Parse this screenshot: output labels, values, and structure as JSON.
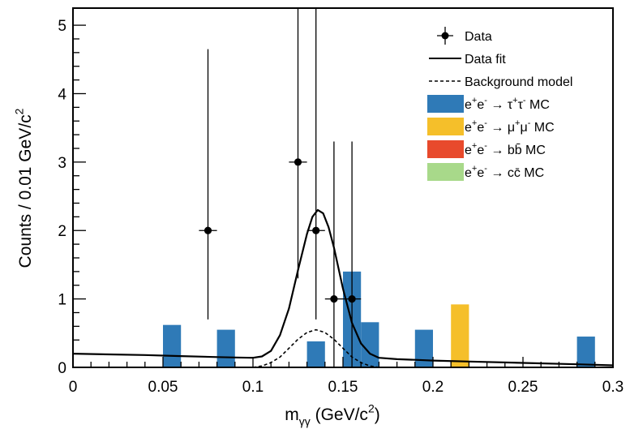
{
  "chart_data": {
    "type": "bar",
    "title": "",
    "xlabel": "m_{γγ} (GeV/c^2)",
    "ylabel": "Counts / 0.01 GeV/c^2",
    "xlim": [
      0,
      0.3
    ],
    "ylim": [
      0,
      5.25
    ],
    "x_ticks": [
      "0",
      "0.05",
      "0.1",
      "0.15",
      "0.2",
      "0.25",
      "0.3"
    ],
    "y_ticks": [
      "0",
      "1",
      "2",
      "3",
      "4",
      "5"
    ],
    "grid": false,
    "legend_position": "top-right",
    "legend": [
      {
        "label": "Data",
        "style": "marker",
        "color": "#000000"
      },
      {
        "label": "Data fit",
        "style": "solid-line",
        "color": "#000000"
      },
      {
        "label": "Background model",
        "style": "dashed-line",
        "color": "#000000"
      },
      {
        "label": "e+e- → τ+τ- MC",
        "style": "box",
        "color": "#2f7ab7"
      },
      {
        "label": "e+e- → μ+μ- MC",
        "style": "box",
        "color": "#f5bf2a"
      },
      {
        "label": "e+e- → bb̄ MC",
        "style": "box",
        "color": "#e84a2c"
      },
      {
        "label": "e+e- → cc̄ MC",
        "style": "box",
        "color": "#a8d98a"
      }
    ],
    "series": [
      {
        "name": "e+e- → τ+τ- MC",
        "type": "bar",
        "color": "#2f7ab7",
        "bins": [
          {
            "x0": 0.05,
            "x1": 0.06,
            "value": 0.62
          },
          {
            "x0": 0.08,
            "x1": 0.09,
            "value": 0.55
          },
          {
            "x0": 0.13,
            "x1": 0.14,
            "value": 0.38
          },
          {
            "x0": 0.15,
            "x1": 0.16,
            "value": 1.4
          },
          {
            "x0": 0.16,
            "x1": 0.17,
            "value": 0.66
          },
          {
            "x0": 0.19,
            "x1": 0.2,
            "value": 0.55
          },
          {
            "x0": 0.28,
            "x1": 0.29,
            "value": 0.45
          }
        ]
      },
      {
        "name": "e+e- → μ+μ- MC",
        "type": "bar",
        "color": "#f5bf2a",
        "bins": [
          {
            "x0": 0.21,
            "x1": 0.22,
            "value": 0.92
          }
        ]
      },
      {
        "name": "Data",
        "type": "errorbar",
        "color": "#000000",
        "points": [
          {
            "x": 0.075,
            "y": 2,
            "ylow": 0.7,
            "yhigh": 4.65,
            "xerr": 0.005
          },
          {
            "x": 0.125,
            "y": 3,
            "ylow": 1.3,
            "yhigh": 5.25,
            "xerr": 0.005
          },
          {
            "x": 0.135,
            "y": 2,
            "ylow": 0.7,
            "yhigh": 5.25,
            "xerr": 0.005
          },
          {
            "x": 0.145,
            "y": 1,
            "ylow": 0.0,
            "yhigh": 3.3,
            "xerr": 0.005
          },
          {
            "x": 0.155,
            "y": 1,
            "ylow": 0.0,
            "yhigh": 3.3,
            "xerr": 0.005
          }
        ]
      },
      {
        "name": "Data fit",
        "type": "line",
        "style": "solid",
        "color": "#000000",
        "x": [
          0,
          0.02,
          0.04,
          0.06,
          0.08,
          0.09,
          0.1,
          0.105,
          0.11,
          0.115,
          0.12,
          0.125,
          0.13,
          0.133,
          0.136,
          0.139,
          0.142,
          0.145,
          0.15,
          0.155,
          0.16,
          0.165,
          0.17,
          0.18,
          0.19,
          0.2,
          0.22,
          0.25,
          0.28,
          0.3
        ],
        "y": [
          0.2,
          0.19,
          0.18,
          0.165,
          0.15,
          0.145,
          0.14,
          0.16,
          0.24,
          0.47,
          0.86,
          1.42,
          1.95,
          2.2,
          2.3,
          2.25,
          2.05,
          1.75,
          1.15,
          0.65,
          0.35,
          0.2,
          0.14,
          0.12,
          0.11,
          0.1,
          0.085,
          0.065,
          0.045,
          0.03
        ]
      },
      {
        "name": "Background model",
        "type": "line",
        "style": "dashed",
        "color": "#000000",
        "x": [
          0.1,
          0.105,
          0.11,
          0.115,
          0.12,
          0.125,
          0.13,
          0.135,
          0.14,
          0.145,
          0.15,
          0.155,
          0.16,
          0.165,
          0.17
        ],
        "y": [
          0.0,
          0.02,
          0.07,
          0.15,
          0.28,
          0.41,
          0.51,
          0.55,
          0.51,
          0.41,
          0.28,
          0.15,
          0.07,
          0.02,
          0.0
        ]
      }
    ]
  }
}
